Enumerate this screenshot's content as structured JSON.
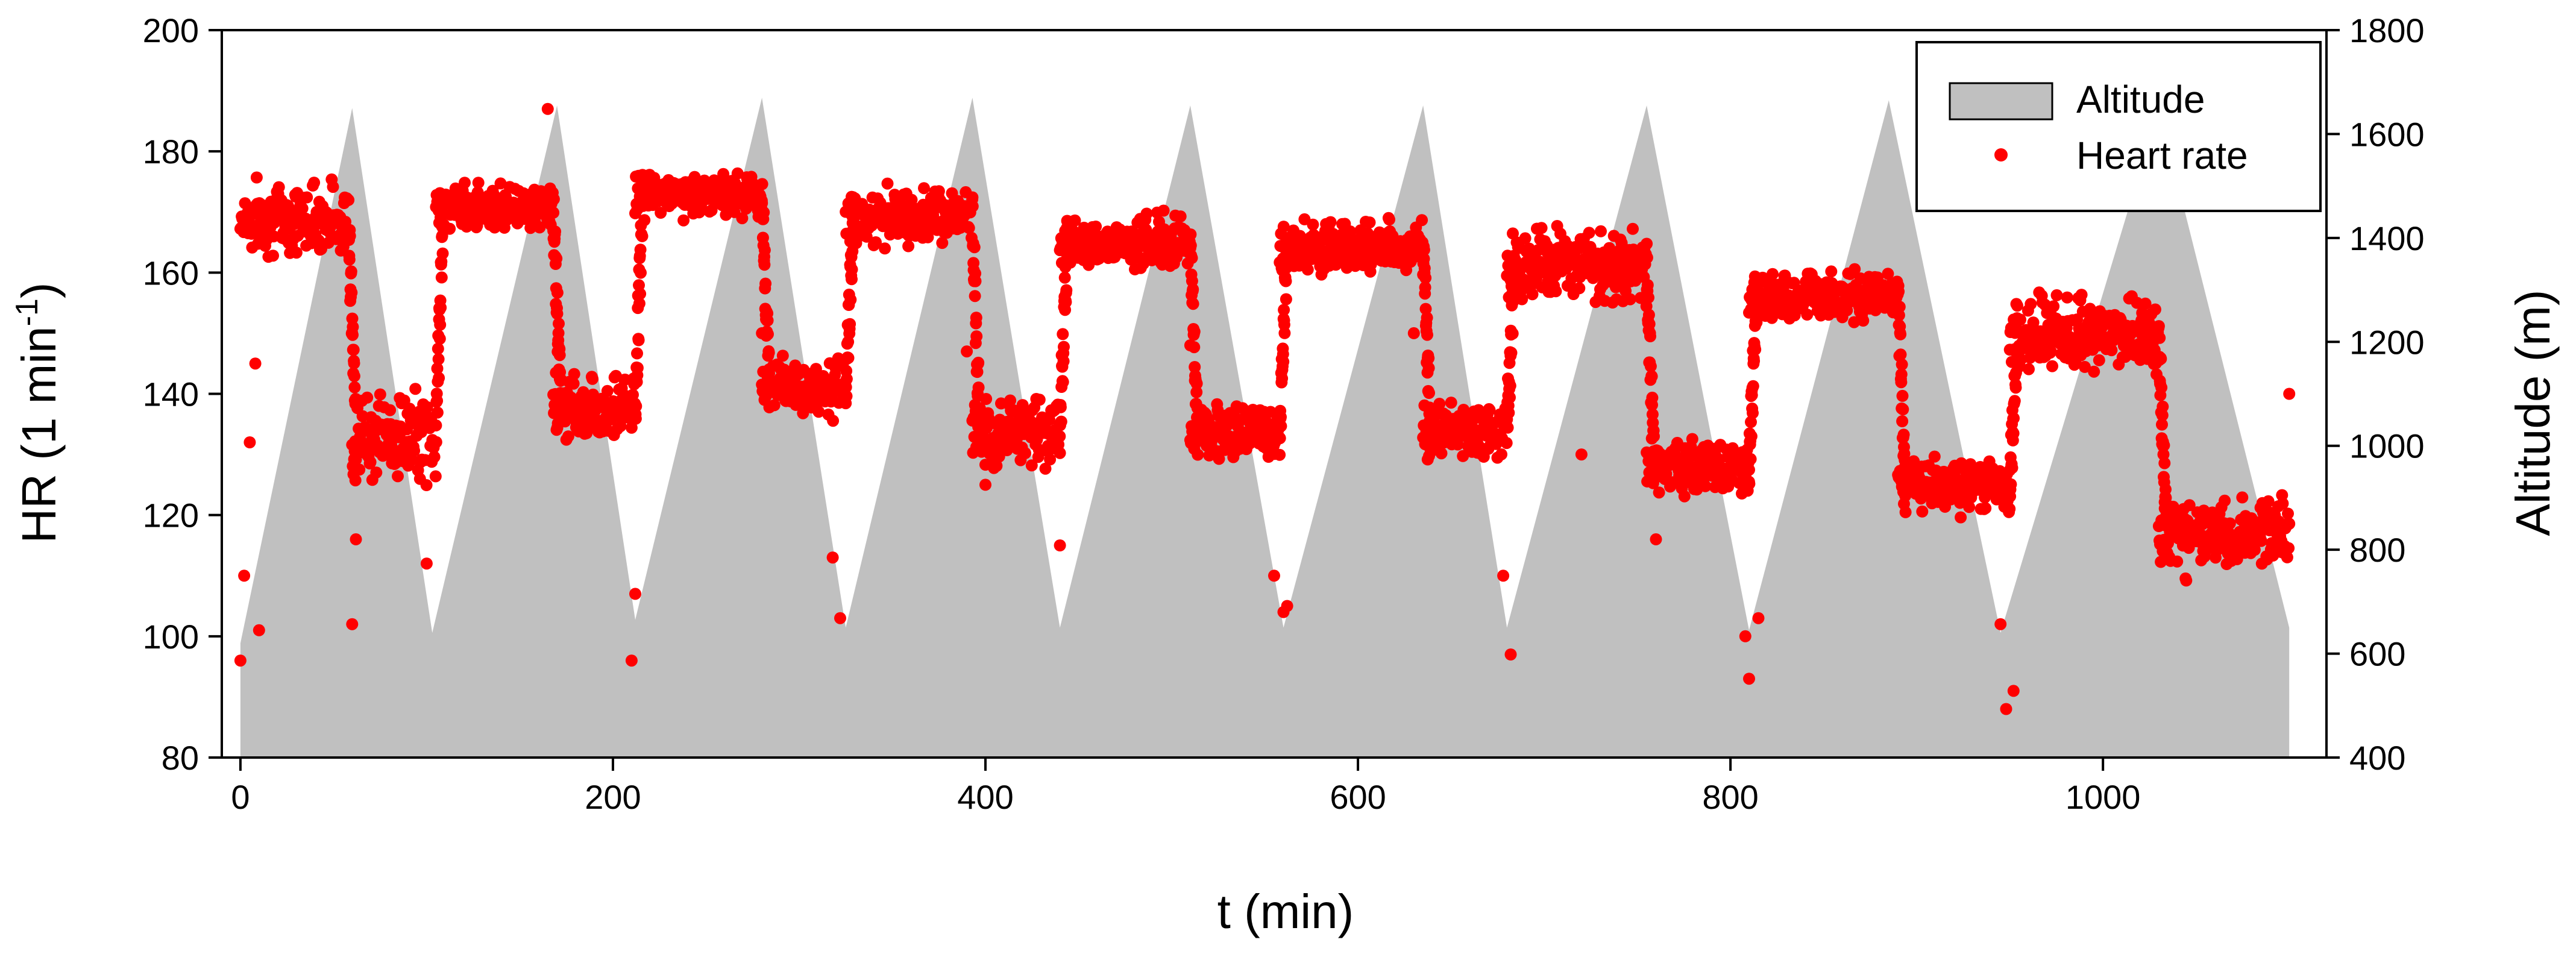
{
  "chart_data": {
    "type": "scatter",
    "x_axis": {
      "label": "t (min)",
      "lim": [
        -10,
        1120
      ],
      "ticks": [
        0,
        200,
        400,
        600,
        800,
        1000
      ]
    },
    "y_left": {
      "label_main": "HR (1 min",
      "label_sup": "-1",
      "label_end": ")",
      "lim": [
        80,
        200
      ],
      "ticks": [
        80,
        100,
        120,
        140,
        160,
        180,
        200
      ]
    },
    "y_right": {
      "label": "Altitude (m)",
      "lim": [
        400,
        1800
      ],
      "ticks": [
        400,
        600,
        800,
        1000,
        1200,
        1400,
        1600,
        1800
      ]
    },
    "legend": {
      "placement": "top-right",
      "entries": [
        "Altitude",
        "Heart rate"
      ]
    },
    "colors": {
      "altitude_fill": "#c0c0c0",
      "heart_rate": "#ff0000"
    },
    "series": [
      {
        "name": "Altitude",
        "kind": "area",
        "axis": "right",
        "points": [
          [
            0,
            620
          ],
          [
            60,
            1650
          ],
          [
            103,
            640
          ],
          [
            170,
            1655
          ],
          [
            212,
            665
          ],
          [
            280,
            1670
          ],
          [
            325,
            650
          ],
          [
            393,
            1670
          ],
          [
            440,
            650
          ],
          [
            510,
            1655
          ],
          [
            560,
            650
          ],
          [
            635,
            1655
          ],
          [
            680,
            650
          ],
          [
            755,
            1655
          ],
          [
            810,
            645
          ],
          [
            885,
            1665
          ],
          [
            945,
            640
          ],
          [
            1030,
            1650
          ],
          [
            1100,
            650
          ]
        ]
      },
      {
        "name": "Heart rate",
        "kind": "scatter",
        "axis": "left",
        "segments": [
          {
            "t": [
              0,
              58
            ],
            "hr": 169,
            "spread": 4
          },
          {
            "t": [
              60,
              105
            ],
            "hr": 133,
            "spread": 5
          },
          {
            "t": [
              105,
              168
            ],
            "hr": 171,
            "spread": 2.5
          },
          {
            "t": [
              168,
              212
            ],
            "hr": 138,
            "spread": 4
          },
          {
            "t": [
              212,
              280
            ],
            "hr": 173,
            "spread": 2.5
          },
          {
            "t": [
              280,
              325
            ],
            "hr": 141,
            "spread": 3
          },
          {
            "t": [
              325,
              393
            ],
            "hr": 169,
            "spread": 3
          },
          {
            "t": [
              393,
              440
            ],
            "hr": 134,
            "spread": 4
          },
          {
            "t": [
              440,
              510
            ],
            "hr": 165,
            "spread": 3
          },
          {
            "t": [
              510,
              558
            ],
            "hr": 134,
            "spread": 3
          },
          {
            "t": [
              558,
              635
            ],
            "hr": 164,
            "spread": 3
          },
          {
            "t": [
              635,
              680
            ],
            "hr": 134,
            "spread": 3
          },
          {
            "t": [
              680,
              755
            ],
            "hr": 161,
            "spread": 4
          },
          {
            "t": [
              755,
              810
            ],
            "hr": 128,
            "spread": 3
          },
          {
            "t": [
              810,
              890
            ],
            "hr": 156,
            "spread": 3
          },
          {
            "t": [
              890,
              950
            ],
            "hr": 125,
            "spread": 3
          },
          {
            "t": [
              950,
              1030
            ],
            "hr": 150,
            "spread": 4
          },
          {
            "t": [
              1030,
              1100
            ],
            "hr": 117,
            "spread": 4
          }
        ],
        "outliers": [
          [
            0,
            96
          ],
          [
            2,
            110
          ],
          [
            5,
            132
          ],
          [
            8,
            145
          ],
          [
            10,
            101
          ],
          [
            60,
            102
          ],
          [
            62,
            116
          ],
          [
            100,
            112
          ],
          [
            165,
            187
          ],
          [
            210,
            96
          ],
          [
            212,
            107
          ],
          [
            280,
            150
          ],
          [
            318,
            113
          ],
          [
            322,
            103
          ],
          [
            390,
            147
          ],
          [
            400,
            125
          ],
          [
            440,
            115
          ],
          [
            510,
            148
          ],
          [
            555,
            110
          ],
          [
            560,
            104
          ],
          [
            562,
            105
          ],
          [
            630,
            150
          ],
          [
            678,
            110
          ],
          [
            682,
            97
          ],
          [
            720,
            130
          ],
          [
            760,
            116
          ],
          [
            808,
            100
          ],
          [
            810,
            93
          ],
          [
            815,
            103
          ],
          [
            945,
            102
          ],
          [
            948,
            88
          ],
          [
            952,
            91
          ],
          [
            1030,
            178
          ],
          [
            1100,
            140
          ]
        ]
      }
    ]
  }
}
